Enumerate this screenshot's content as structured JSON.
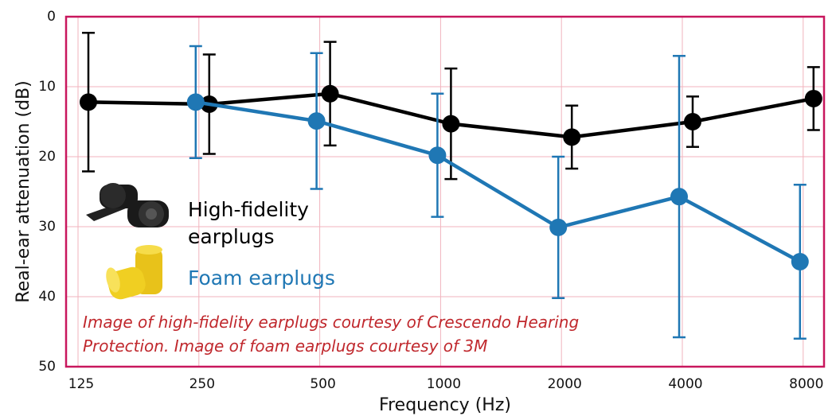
{
  "chart_data": {
    "type": "line",
    "x_label": "Frequency (Hz)",
    "y_label": "Real-ear attenuation (dB)",
    "categories": [
      "125",
      "250",
      "500",
      "1000",
      "2000",
      "4000",
      "8000"
    ],
    "ylim": [
      0,
      50
    ],
    "y_inverted": true,
    "yticks": [
      0,
      10,
      20,
      30,
      40,
      50
    ],
    "grid": true,
    "series": [
      {
        "name": "High-fidelity earplugs",
        "color": "#000000",
        "values": [
          12.2,
          12.5,
          11.0,
          15.3,
          17.2,
          15.0,
          11.7
        ],
        "errors": [
          9.9,
          7.1,
          7.4,
          7.9,
          4.5,
          3.6,
          4.5
        ]
      },
      {
        "name": "Foam earplugs",
        "color": "#1f77b4",
        "values": [
          null,
          12.2,
          14.9,
          19.8,
          30.1,
          25.7,
          35.0
        ],
        "errors": [
          null,
          8.0,
          9.7,
          8.8,
          10.1,
          20.1,
          11.0
        ]
      }
    ],
    "annotation": "Image of high-fidelity earplugs courtesy of Crescendo Hearing Protection. Image of foam earplugs courtesy of 3M"
  }
}
